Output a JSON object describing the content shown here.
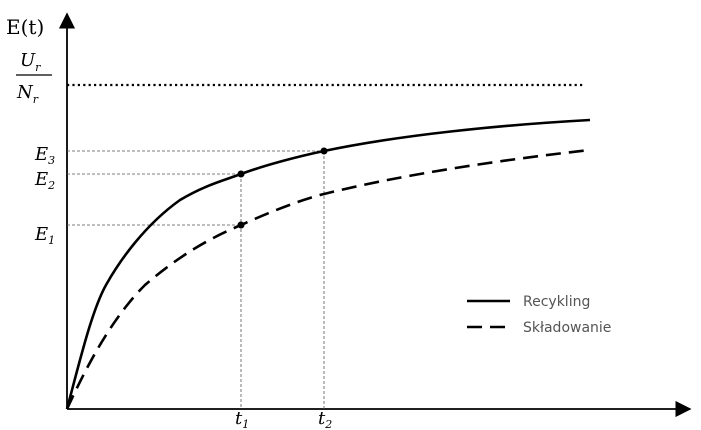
{
  "chart_data": {
    "type": "line",
    "y_axis_label": "E(t)",
    "asymptote_label": {
      "numerator": "U",
      "numerator_sub": "r",
      "denominator": "N",
      "denominator_sub": "r"
    },
    "y_ticks": [
      {
        "base": "E",
        "sub": "3"
      },
      {
        "base": "E",
        "sub": "2"
      },
      {
        "base": "E",
        "sub": "1"
      }
    ],
    "x_ticks": [
      {
        "base": "t",
        "sub": "1"
      },
      {
        "base": "t",
        "sub": "2"
      }
    ],
    "legend_position": "right",
    "series": [
      {
        "name": "Recykling",
        "style": "solid",
        "color": "#000000"
      },
      {
        "name": "Składowanie",
        "style": "dashed",
        "color": "#000000"
      }
    ],
    "grid": false
  }
}
